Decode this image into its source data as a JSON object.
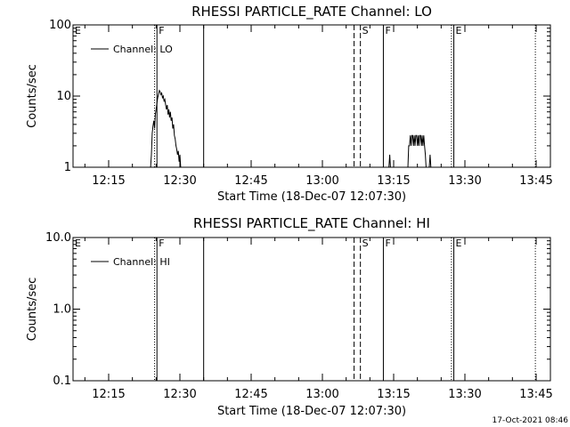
{
  "footer": "17-Oct-2021 08:46",
  "chart_data": [
    {
      "type": "line",
      "title": "RHESSI PARTICLE_RATE Channel: LO",
      "xlabel": "Start Time (18-Dec-07 12:07:30)",
      "ylabel": "Counts/sec",
      "yscale": "log",
      "ylim": [
        1,
        100
      ],
      "xlim": [
        "12:07:30",
        "13:48:00"
      ],
      "ytick_labels": [
        "1",
        "10",
        "100"
      ],
      "ytick_values": [
        1,
        10,
        100
      ],
      "xtick_labels": [
        "12:15",
        "12:30",
        "12:45",
        "13:00",
        "13:15",
        "13:30",
        "13:45"
      ],
      "legend": {
        "placement": "top-left",
        "entries": [
          "Channel: LO"
        ]
      },
      "grid": false,
      "markers": [
        {
          "label": "E",
          "time": "12:07:30",
          "style": "none"
        },
        {
          "label": "",
          "time": "12:24:40",
          "style": "dotted"
        },
        {
          "label": "F",
          "time": "12:25:10",
          "style": "solid"
        },
        {
          "label": "",
          "time": "12:35:00",
          "style": "solid"
        },
        {
          "label": "",
          "time": "13:06:40",
          "style": "dashed"
        },
        {
          "label": "S",
          "time": "13:08:00",
          "style": "dashed"
        },
        {
          "label": "F",
          "time": "13:12:50",
          "style": "solid"
        },
        {
          "label": "",
          "time": "13:27:10",
          "style": "dotted"
        },
        {
          "label": "E",
          "time": "13:27:40",
          "style": "solid"
        },
        {
          "label": "",
          "time": "13:44:50",
          "style": "dotted"
        }
      ],
      "series": [
        {
          "values": [
            [
              "12:23:50",
              1
            ],
            [
              "12:24:00",
              1.5
            ],
            [
              "12:24:10",
              3.0
            ],
            [
              "12:24:20",
              3.8
            ],
            [
              "12:24:30",
              4.5
            ],
            [
              "12:24:40",
              3.5
            ],
            [
              "12:24:50",
              5.5
            ],
            [
              "12:25:00",
              6.5
            ],
            [
              "12:25:10",
              8.0
            ],
            [
              "12:25:20",
              9.5
            ],
            [
              "12:25:30",
              10.5
            ],
            [
              "12:25:40",
              12.0
            ],
            [
              "12:25:50",
              11.5
            ],
            [
              "12:26:00",
              10.5
            ],
            [
              "12:26:10",
              11.0
            ],
            [
              "12:26:20",
              9.5
            ],
            [
              "12:26:30",
              10.0
            ],
            [
              "12:26:40",
              8.5
            ],
            [
              "12:26:50",
              9.0
            ],
            [
              "12:27:00",
              7.5
            ],
            [
              "12:27:10",
              6.5
            ],
            [
              "12:27:20",
              7.5
            ],
            [
              "12:27:30",
              5.5
            ],
            [
              "12:27:40",
              6.5
            ],
            [
              "12:27:50",
              5.0
            ],
            [
              "12:28:00",
              6.0
            ],
            [
              "12:28:10",
              4.5
            ],
            [
              "12:28:20",
              5.0
            ],
            [
              "12:28:30",
              3.5
            ],
            [
              "12:28:40",
              4.0
            ],
            [
              "12:28:50",
              2.8
            ],
            [
              "12:29:00",
              2.5
            ],
            [
              "12:29:10",
              2.0
            ],
            [
              "12:29:20",
              1.8
            ],
            [
              "12:29:30",
              1.5
            ],
            [
              "12:29:40",
              1.7
            ],
            [
              "12:29:50",
              1.2
            ],
            [
              "12:30:00",
              1.5
            ],
            [
              "12:30:10",
              1
            ],
            [
              null,
              null
            ],
            [
              "13:14:00",
              1
            ],
            [
              "13:14:10",
              1.5
            ],
            [
              "13:14:20",
              1
            ],
            [
              null,
              null
            ],
            [
              "13:18:00",
              1
            ],
            [
              "13:18:10",
              2.0
            ],
            [
              "13:18:20",
              2.0
            ],
            [
              "13:18:30",
              2.8
            ],
            [
              "13:18:40",
              2.0
            ],
            [
              "13:18:50",
              2.8
            ],
            [
              "13:19:00",
              2.8
            ],
            [
              "13:19:10",
              2.0
            ],
            [
              "13:19:20",
              2.8
            ],
            [
              "13:19:30",
              2.0
            ],
            [
              "13:19:40",
              2.8
            ],
            [
              "13:19:50",
              2.8
            ],
            [
              "13:20:00",
              2.0
            ],
            [
              "13:20:10",
              2.8
            ],
            [
              "13:20:20",
              2.0
            ],
            [
              "13:20:30",
              2.8
            ],
            [
              "13:20:40",
              2.8
            ],
            [
              "13:20:50",
              2.0
            ],
            [
              "13:21:00",
              2.8
            ],
            [
              "13:21:10",
              2.0
            ],
            [
              "13:21:20",
              2.8
            ],
            [
              "13:21:30",
              2.0
            ],
            [
              "13:21:40",
              1.5
            ],
            [
              "13:21:50",
              1
            ],
            [
              null,
              null
            ],
            [
              "13:22:30",
              1
            ],
            [
              "13:22:40",
              1.5
            ],
            [
              "13:22:50",
              1
            ]
          ]
        }
      ]
    },
    {
      "type": "line",
      "title": "RHESSI PARTICLE_RATE Channel: HI",
      "xlabel": "Start Time (18-Dec-07 12:07:30)",
      "ylabel": "Counts/sec",
      "yscale": "log",
      "ylim": [
        0.1,
        10
      ],
      "xlim": [
        "12:07:30",
        "13:48:00"
      ],
      "ytick_labels": [
        "0.1",
        "1.0",
        "10.0"
      ],
      "ytick_values": [
        0.1,
        1,
        10
      ],
      "xtick_labels": [
        "12:15",
        "12:30",
        "12:45",
        "13:00",
        "13:15",
        "13:30",
        "13:45"
      ],
      "legend": {
        "placement": "top-left",
        "entries": [
          "Channel: HI"
        ]
      },
      "grid": false,
      "markers": [
        {
          "label": "E",
          "time": "12:07:30",
          "style": "none"
        },
        {
          "label": "",
          "time": "12:24:40",
          "style": "dotted"
        },
        {
          "label": "F",
          "time": "12:25:10",
          "style": "solid"
        },
        {
          "label": "",
          "time": "12:35:00",
          "style": "solid"
        },
        {
          "label": "",
          "time": "13:06:40",
          "style": "dashed"
        },
        {
          "label": "S",
          "time": "13:08:00",
          "style": "dashed"
        },
        {
          "label": "F",
          "time": "13:12:50",
          "style": "solid"
        },
        {
          "label": "",
          "time": "13:27:10",
          "style": "dotted"
        },
        {
          "label": "E",
          "time": "13:27:40",
          "style": "solid"
        },
        {
          "label": "",
          "time": "13:44:50",
          "style": "dotted"
        }
      ],
      "series": [
        {
          "values": []
        }
      ]
    }
  ]
}
